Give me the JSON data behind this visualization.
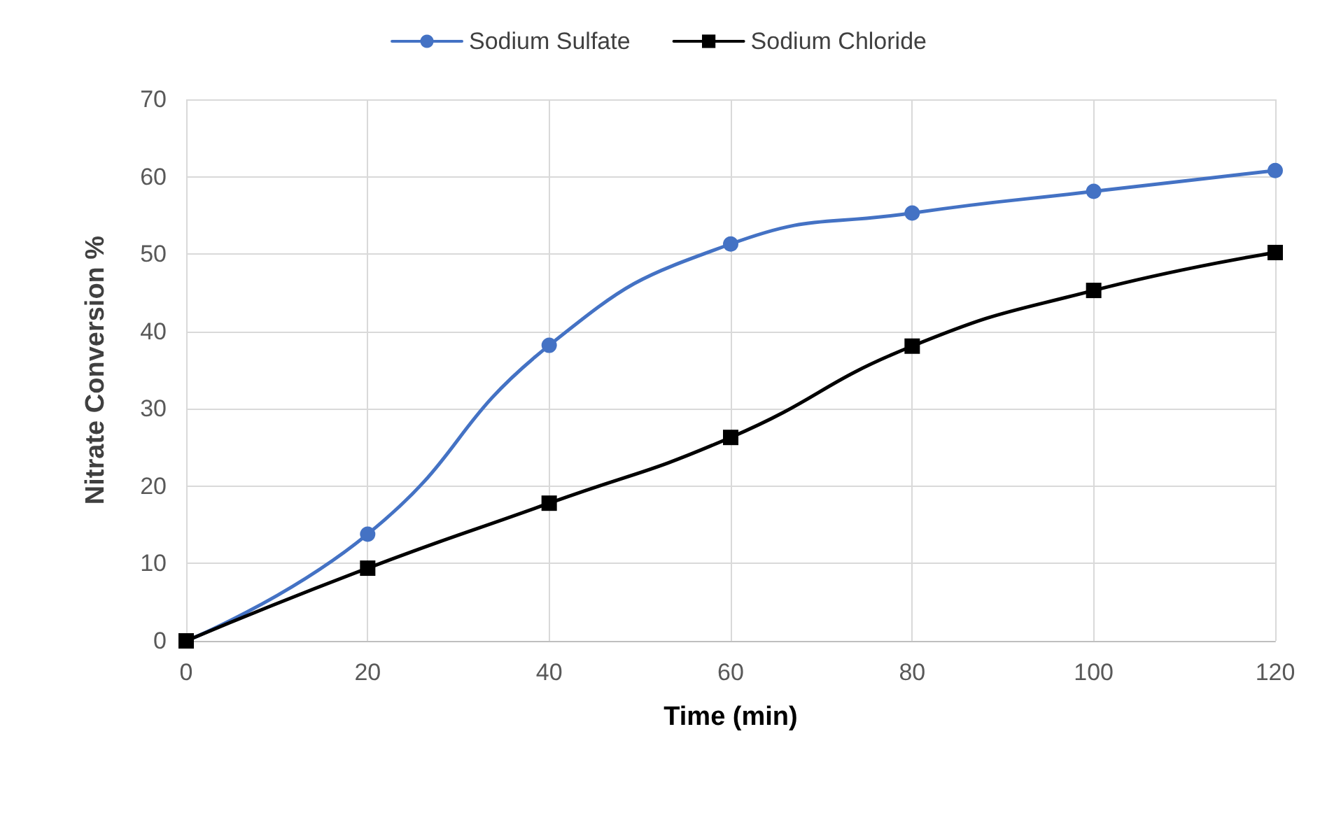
{
  "chart_data": {
    "type": "line",
    "xlabel": "Time (min)",
    "ylabel": "Nitrate Conversion %",
    "x": [
      0,
      20,
      40,
      60,
      80,
      100,
      120
    ],
    "series": [
      {
        "name": "Sodium Sulfate",
        "color": "#4472c4",
        "marker": "circle",
        "values": [
          0,
          13.8,
          38.2,
          51.3,
          55.3,
          58.1,
          60.8
        ]
      },
      {
        "name": "Sodium Chloride",
        "color": "#000000",
        "marker": "square",
        "values": [
          0,
          9.4,
          17.8,
          26.3,
          38.1,
          45.3,
          50.2
        ]
      }
    ],
    "xlim": [
      0,
      120
    ],
    "xticks": [
      0,
      20,
      40,
      60,
      80,
      100,
      120
    ],
    "ylim": [
      0,
      70
    ],
    "yticks": [
      0,
      10,
      20,
      30,
      40,
      50,
      60,
      70
    ],
    "grid": true,
    "legend": "top",
    "line_style": "solid"
  }
}
